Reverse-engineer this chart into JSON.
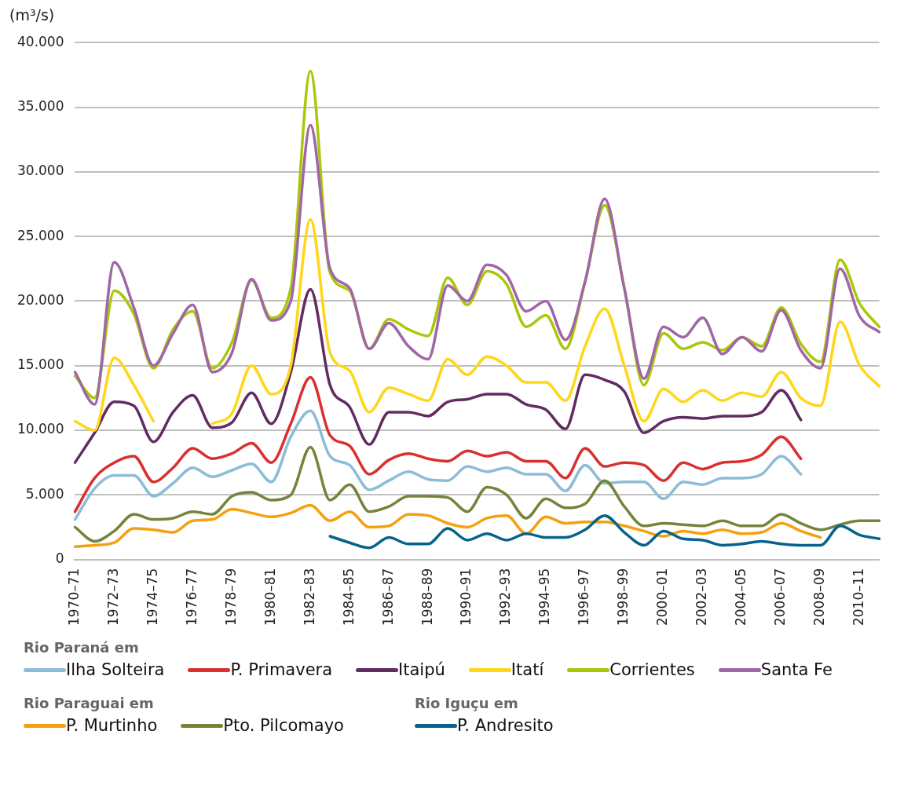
{
  "chart_data": {
    "type": "line",
    "ylabel": "(m³/s)",
    "categories": [
      "1970–71",
      null,
      "1972–73",
      null,
      "1974–75",
      null,
      "1976–77",
      null,
      "1978–79",
      null,
      "1980–81",
      null,
      "1982–83",
      null,
      "1984–85",
      null,
      "1986–87",
      null,
      "1988–89",
      null,
      "1990–91",
      null,
      "1992–93",
      null,
      "1994–95",
      null,
      "1996–97",
      null,
      "1998–99",
      null,
      "2000–01",
      null,
      "2002–03",
      null,
      "2004–05",
      null,
      "2006–07",
      null,
      "2008–09",
      null,
      "2010–11",
      null
    ],
    "ylim": [
      0,
      40000
    ],
    "yticks": [
      0,
      {
        "value": 5000,
        "label": "5.000"
      },
      {
        "value": 10000,
        "label": "10.000"
      },
      {
        "value": 15000,
        "label": "15.000"
      },
      {
        "value": 20000,
        "label": "20.000"
      },
      {
        "value": 25000,
        "label": "25.000"
      },
      {
        "value": 30000,
        "label": "30.000"
      },
      {
        "value": 35000,
        "label": "35.000"
      },
      {
        "value": 40000,
        "label": "40.000"
      }
    ],
    "grid": "y",
    "legend": "bottom",
    "marker": "none",
    "line_style": "solid",
    "legend_title": [
      "Rio Paraná em",
      "Rio Paraguai em",
      "Rio Iguçu em"
    ],
    "series": [
      {
        "name": "Ilha Solteira",
        "color": "#8bbcd8",
        "values": [
          3100,
          5500,
          6500,
          6500,
          4900,
          5900,
          7100,
          6400,
          6900,
          7400,
          6000,
          9500,
          11500,
          8000,
          7300,
          5400,
          6100,
          6800,
          6200,
          6100,
          7200,
          6800,
          7100,
          6600,
          6600,
          5300,
          7300,
          5900,
          6000,
          6000,
          4700,
          6000,
          5800,
          6300,
          6300,
          6600,
          8000,
          6600,
          null,
          null,
          null,
          null
        ]
      },
      {
        "name": "P. Primavera",
        "color": "#d93030",
        "values": [
          3700,
          6300,
          7500,
          8000,
          6000,
          7100,
          8600,
          7800,
          8200,
          9000,
          7500,
          10500,
          14100,
          9600,
          8800,
          6600,
          7700,
          8200,
          7800,
          7600,
          8400,
          8000,
          8300,
          7600,
          7600,
          6300,
          8600,
          7200,
          7500,
          7300,
          6100,
          7500,
          7000,
          7500,
          7600,
          8100,
          9500,
          7800,
          null,
          null,
          null,
          null
        ]
      },
      {
        "name": "Itaipú",
        "color": "#622c62",
        "values": [
          7500,
          9800,
          12200,
          11900,
          9100,
          11400,
          12700,
          10200,
          10600,
          12900,
          10500,
          14500,
          20900,
          13500,
          11800,
          8900,
          11400,
          11400,
          11100,
          12200,
          12400,
          12800,
          12800,
          12000,
          11600,
          10100,
          14300,
          13900,
          13000,
          9800,
          10700,
          11000,
          10900,
          11100,
          11100,
          11400,
          13100,
          10800,
          null,
          null,
          null,
          null
        ]
      },
      {
        "name": "Itatí",
        "color": "#ffd619",
        "values": [
          10700,
          10000,
          15600,
          13500,
          10700,
          null,
          null,
          10500,
          11300,
          15000,
          12800,
          15000,
          26300,
          16000,
          14600,
          11400,
          13300,
          12800,
          12300,
          15500,
          14300,
          15700,
          15000,
          13700,
          13700,
          12300,
          16500,
          19400,
          15000,
          10700,
          13200,
          12200,
          13100,
          12300,
          12900,
          12600,
          14500,
          12500,
          11900,
          18400,
          15000,
          13400
        ]
      },
      {
        "name": "Corrientes",
        "color": "#a9c80a",
        "values": [
          14200,
          12500,
          20800,
          19000,
          14800,
          17800,
          19200,
          14800,
          16800,
          21600,
          18700,
          21000,
          37800,
          22200,
          20800,
          16300,
          18600,
          17800,
          17300,
          21800,
          19700,
          22300,
          21300,
          18000,
          18900,
          16300,
          21500,
          27400,
          21000,
          13500,
          17500,
          16300,
          16800,
          16200,
          17200,
          16500,
          19500,
          16700,
          15300,
          23200,
          19800,
          18000
        ]
      },
      {
        "name": "Santa Fe",
        "color": "#a066a8",
        "values": [
          14500,
          12000,
          23000,
          19500,
          15000,
          17500,
          19700,
          14500,
          16000,
          21700,
          18500,
          20000,
          33600,
          22500,
          21000,
          16300,
          18300,
          16500,
          15500,
          21200,
          20000,
          22800,
          22000,
          19200,
          20000,
          17000,
          21500,
          27900,
          21000,
          14000,
          18000,
          17200,
          18700,
          15900,
          17200,
          16100,
          19300,
          16200,
          14800,
          22500,
          18800,
          17600
        ]
      },
      {
        "name": "P. Murtinho",
        "color": "#f5a00f",
        "values": [
          1000,
          1100,
          1300,
          2400,
          2300,
          2100,
          3000,
          3100,
          3900,
          3600,
          3300,
          3600,
          4200,
          3000,
          3700,
          2500,
          2600,
          3500,
          3400,
          2800,
          2500,
          3200,
          3400,
          2000,
          3300,
          2800,
          2900,
          2900,
          2600,
          2200,
          1800,
          2200,
          2000,
          2300,
          2000,
          2100,
          2800,
          2200,
          1700,
          null,
          null,
          null
        ]
      },
      {
        "name": "Pto. Pilcomayo",
        "color": "#76843a",
        "values": [
          2500,
          1400,
          2200,
          3500,
          3100,
          3200,
          3700,
          3500,
          4900,
          5200,
          4600,
          5000,
          8700,
          4600,
          5800,
          3700,
          4100,
          4900,
          4900,
          4800,
          3700,
          5600,
          5000,
          3200,
          4700,
          4000,
          4300,
          6100,
          4100,
          2600,
          2800,
          2700,
          2600,
          3000,
          2600,
          2600,
          3500,
          2800,
          2300,
          2700,
          3000,
          3000
        ]
      },
      {
        "name": "P. Andresito",
        "color": "#08638c",
        "values": [
          null,
          null,
          null,
          null,
          null,
          null,
          null,
          null,
          null,
          null,
          null,
          null,
          null,
          1800,
          1300,
          900,
          1700,
          1200,
          1200,
          2400,
          1500,
          2000,
          1500,
          2000,
          1700,
          1700,
          2300,
          3400,
          2100,
          1100,
          2200,
          1600,
          1500,
          1100,
          1200,
          1400,
          1200,
          1100,
          1100,
          2600,
          1900,
          1600
        ]
      }
    ]
  }
}
